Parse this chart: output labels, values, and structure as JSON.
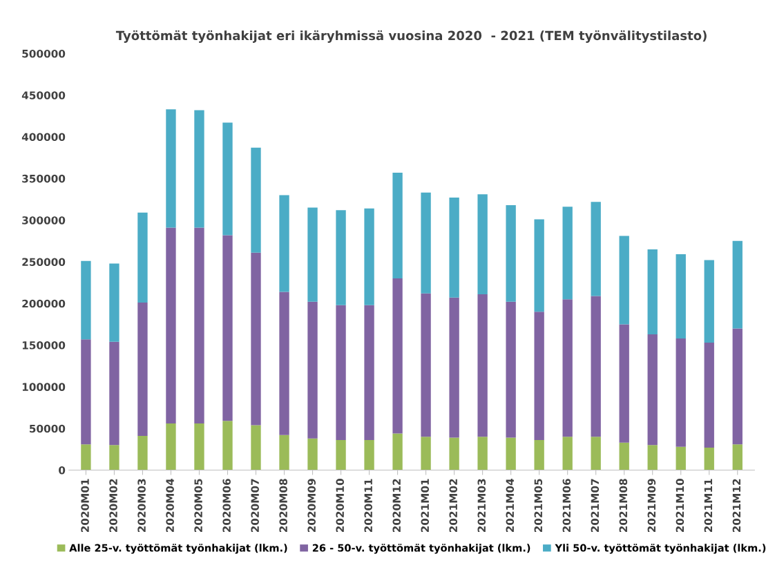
{
  "chart_data": {
    "type": "bar",
    "stacked": true,
    "title": "Työttömät työnhakijat eri ikäryhmissä vuosina 2020  - 2021 (TEM työnvälitystilasto)",
    "categories": [
      "2020M01",
      "2020M02",
      "2020M03",
      "2020M04",
      "2020M05",
      "2020M06",
      "2020M07",
      "2020M08",
      "2020M09",
      "2020M10",
      "2020M11",
      "2020M12",
      "2021M01",
      "2021M02",
      "2021M03",
      "2021M04",
      "2021M05",
      "2021M06",
      "2021M07",
      "2021M08",
      "2021M09",
      "2021M10",
      "2021M11",
      "2021M12"
    ],
    "series": [
      {
        "name": "Alle 25-v. työttömät työnhakijat (lkm.)",
        "color": "#9bbb59",
        "values": [
          31000,
          30000,
          41000,
          56000,
          56000,
          59000,
          54000,
          42000,
          38000,
          36000,
          36000,
          44000,
          40000,
          39000,
          40000,
          39000,
          36000,
          40000,
          40000,
          33000,
          30000,
          28000,
          27000,
          31000
        ]
      },
      {
        "name": "26 - 50-v. työttömät työnhakijat (lkm.)",
        "color": "#8064a2",
        "values": [
          126000,
          124000,
          160000,
          235000,
          235000,
          223000,
          207000,
          172000,
          164000,
          162000,
          162000,
          186000,
          172000,
          168000,
          171000,
          163000,
          154000,
          165000,
          169000,
          142000,
          133000,
          130000,
          126000,
          139000
        ]
      },
      {
        "name": "Yli 50-v. työttömät työnhakijat (lkm.)",
        "color": "#4bacc6",
        "values": [
          94000,
          94000,
          108000,
          142000,
          141000,
          135000,
          126000,
          116000,
          113000,
          114000,
          116000,
          127000,
          121000,
          120000,
          120000,
          116000,
          111000,
          111000,
          113000,
          106000,
          102000,
          101000,
          99000,
          105000
        ]
      }
    ],
    "ylim": [
      0,
      500000
    ],
    "yticks": [
      0,
      50000,
      100000,
      150000,
      200000,
      250000,
      300000,
      350000,
      400000,
      450000,
      500000
    ],
    "grid": false,
    "legend": "bottom"
  }
}
